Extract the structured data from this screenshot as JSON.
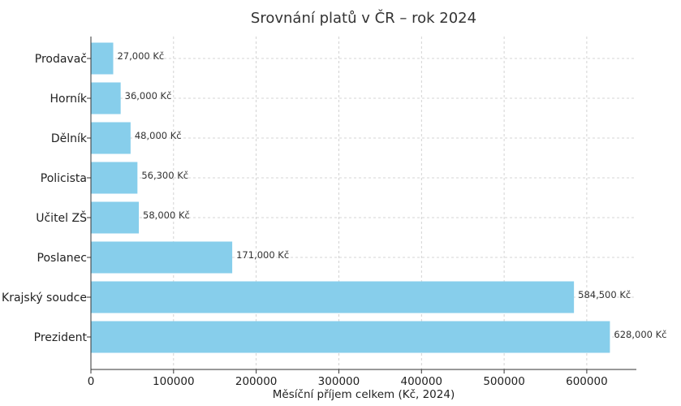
{
  "chart_data": {
    "type": "bar",
    "orientation": "horizontal",
    "title": "Srovnání platů v ČR – rok 2024",
    "xlabel": "Měsíční příjem celkem (Kč, 2024)",
    "ylabel": "",
    "categories": [
      "Prodavač",
      "Horník",
      "Dělník",
      "Policista",
      "Učitel ZŠ",
      "Poslanec",
      "Krajský soudce",
      "Prezident"
    ],
    "values": [
      27000,
      36000,
      48000,
      56300,
      58000,
      171000,
      584500,
      628000
    ],
    "value_labels": [
      "27,000 Kč",
      "36,000 Kč",
      "48,000 Kč",
      "56,300 Kč",
      "58,000 Kč",
      "171,000 Kč",
      "584,500 Kč",
      "628,000 Kč"
    ],
    "x_ticks": [
      0,
      100000,
      200000,
      300000,
      400000,
      500000,
      600000
    ],
    "xlim": [
      0,
      660000
    ],
    "grid": true,
    "bar_color": "#87ceeb"
  }
}
